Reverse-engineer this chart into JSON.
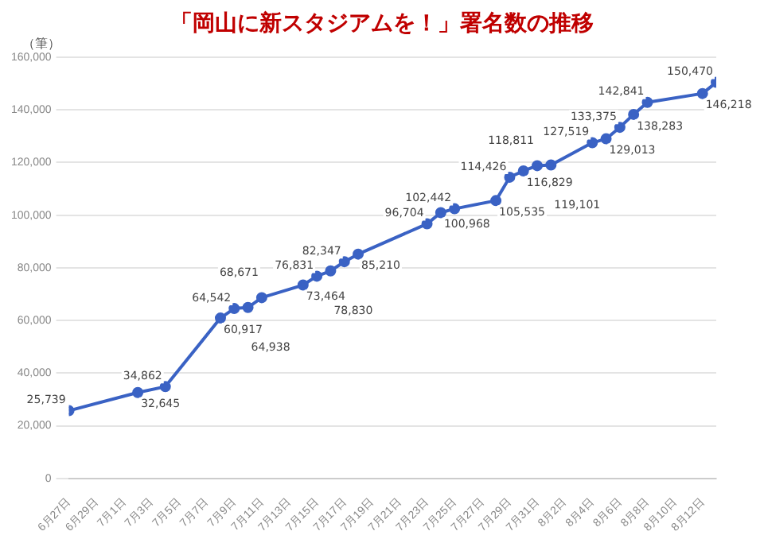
{
  "chart_data": {
    "type": "line",
    "title": "「岡山に新スタジアムを！」署名数の推移",
    "ylabel": "（筆）",
    "x": [
      "--06-27",
      "--07-02",
      "--07-04",
      "--07-08",
      "--07-09",
      "--07-10",
      "--07-11",
      "--07-14",
      "--07-15",
      "--07-16",
      "--07-17",
      "--07-18",
      "--07-23",
      "--07-24",
      "--07-25",
      "--07-28",
      "--07-29",
      "--07-30",
      "--07-31",
      "--08-01",
      "--08-04",
      "--08-05",
      "--08-06",
      "--08-07",
      "--08-08",
      "--08-12",
      "--08-13"
    ],
    "series": [
      {
        "color": "#3a62c4",
        "values": [
          25739,
          32645,
          34862,
          60917,
          64542,
          64938,
          68671,
          73464,
          76831,
          78830,
          82347,
          85210,
          96704,
          100968,
          102442,
          105535,
          114426,
          116829,
          118811,
          119101,
          127519,
          129013,
          133375,
          138283,
          142841,
          146218,
          150470
        ],
        "value_labels": [
          "25,739",
          "32,645",
          "34,862",
          "60,917",
          "64,542",
          "64,938",
          "68,671",
          "73,464",
          "76,831",
          "78,830",
          "82,347",
          "85,210",
          "96,704",
          "100,968",
          "102,442",
          "105,535",
          "114,426",
          "116,829",
          "118,811",
          "119,101",
          "127,519",
          "129,013",
          "133,375",
          "138,283",
          "142,841",
          "146,218",
          "150,470"
        ]
      }
    ],
    "xlim": [
      "--06-27",
      "--08-13"
    ],
    "xticks": [
      {
        "value": "--06-27",
        "label": "6月27日"
      },
      {
        "value": "--06-29",
        "label": "6月29日"
      },
      {
        "value": "--07-01",
        "label": "7月1日"
      },
      {
        "value": "--07-03",
        "label": "7月3日"
      },
      {
        "value": "--07-05",
        "label": "7月5日"
      },
      {
        "value": "--07-07",
        "label": "7月7日"
      },
      {
        "value": "--07-09",
        "label": "7月9日"
      },
      {
        "value": "--07-11",
        "label": "7月11日"
      },
      {
        "value": "--07-13",
        "label": "7月13日"
      },
      {
        "value": "--07-15",
        "label": "7月15日"
      },
      {
        "value": "--07-17",
        "label": "7月17日"
      },
      {
        "value": "--07-19",
        "label": "7月19日"
      },
      {
        "value": "--07-21",
        "label": "7月21日"
      },
      {
        "value": "--07-23",
        "label": "7月23日"
      },
      {
        "value": "--07-25",
        "label": "7月25日"
      },
      {
        "value": "--07-27",
        "label": "7月27日"
      },
      {
        "value": "--07-29",
        "label": "7月29日"
      },
      {
        "value": "--07-31",
        "label": "7月31日"
      },
      {
        "value": "--08-02",
        "label": "8月2日"
      },
      {
        "value": "--08-04",
        "label": "8月4日"
      },
      {
        "value": "--08-06",
        "label": "8月6日"
      },
      {
        "value": "--08-08",
        "label": "8月8日"
      },
      {
        "value": "--08-10",
        "label": "8月10日"
      },
      {
        "value": "--08-12",
        "label": "8月12日"
      }
    ],
    "ylim": [
      0,
      160000
    ],
    "yticks": [
      {
        "value": 0,
        "label": "0"
      },
      {
        "value": 20000,
        "label": "20,000"
      },
      {
        "value": 40000,
        "label": "40,000"
      },
      {
        "value": 60000,
        "label": "60,000"
      },
      {
        "value": 80000,
        "label": "80,000"
      },
      {
        "value": 100000,
        "label": "100,000"
      },
      {
        "value": 120000,
        "label": "120,000"
      },
      {
        "value": 140000,
        "label": "140,000"
      },
      {
        "value": 160000,
        "label": "160,000"
      }
    ],
    "grid": "y",
    "legend": false,
    "marker": "circle",
    "line_style": "solid"
  }
}
